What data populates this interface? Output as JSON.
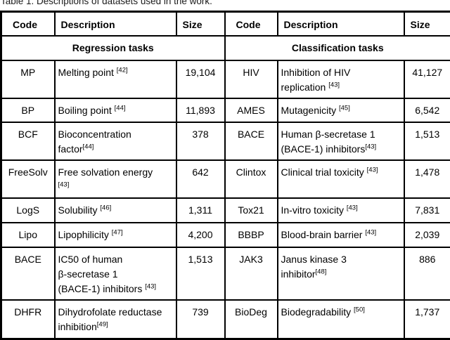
{
  "caption": "Table 1. Descriptions of datasets used in the work.",
  "colors": {
    "border": "#000000",
    "text": "#000000",
    "background": "#ffffff"
  },
  "table": {
    "columns": [
      "Code",
      "Description",
      "Size",
      "Code",
      "Description",
      "Size"
    ],
    "groups": [
      "Regression tasks",
      "Classification tasks"
    ],
    "regression": {
      "rows": [
        {
          "code": "MP",
          "desc": "Melting point [42]",
          "size": "19,104"
        },
        {
          "code": "BP",
          "desc": "Boiling point [44]",
          "size": "11,893"
        },
        {
          "code": "BCF",
          "desc": "Bioconcentration\nfactor[44]",
          "size": "378"
        },
        {
          "code": "FreeSolv",
          "desc": "Free solvation energy\n[43]",
          "size": "642"
        },
        {
          "code": "LogS",
          "desc": "Solubility [46]",
          "size": "1,311"
        },
        {
          "code": "Lipo",
          "desc": "Lipophilicity [47]",
          "size": "4,200"
        },
        {
          "code": "BACE",
          "desc": "IC50 of human\nβ-secretase 1\n(BACE-1) inhibitors [43]",
          "size": "1,513"
        },
        {
          "code": "DHFR",
          "desc": "Dihydrofolate reductase\ninhibition[49]",
          "size": "739"
        }
      ]
    },
    "classification": {
      "rows": [
        {
          "code": "HIV",
          "desc": "Inhibition of HIV\nreplication [43]",
          "size": "41,127"
        },
        {
          "code": "AMES",
          "desc": "Mutagenicity [45]",
          "size": "6,542"
        },
        {
          "code": "BACE",
          "desc": "Human β-secretase 1\n(BACE-1) inhibitors[43]",
          "size": "1,513"
        },
        {
          "code": "Clintox",
          "desc": "Clinical trial toxicity [43]",
          "size": "1,478"
        },
        {
          "code": "Tox21",
          "desc": "In-vitro toxicity [43]",
          "size": "7,831"
        },
        {
          "code": "BBBP",
          "desc": "Blood-brain barrier [43]",
          "size": "2,039"
        },
        {
          "code": "JAK3",
          "desc": "Janus kinase 3\ninhibitor[48]",
          "size": "886"
        },
        {
          "code": "BioDeg",
          "desc": "Biodegradability [50]",
          "size": "1,737"
        }
      ]
    }
  }
}
